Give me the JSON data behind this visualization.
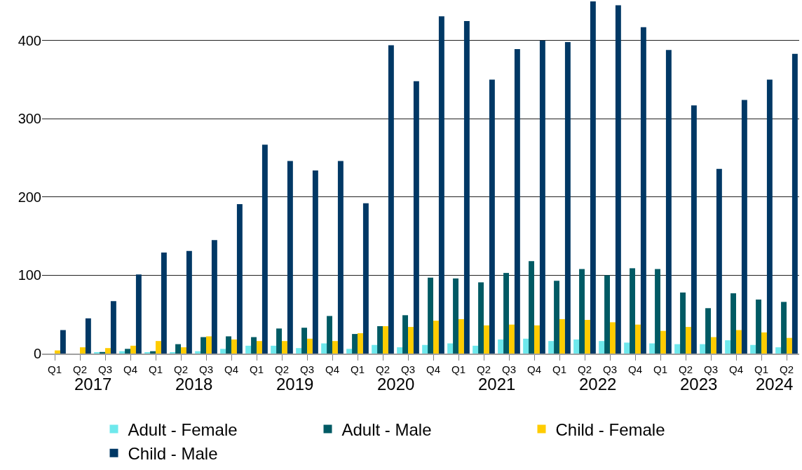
{
  "chart_data": {
    "type": "bar",
    "categories": [
      "Q1",
      "Q2",
      "Q3",
      "Q4",
      "Q1",
      "Q2",
      "Q3",
      "Q4",
      "Q1",
      "Q2",
      "Q3",
      "Q4",
      "Q1",
      "Q2",
      "Q3",
      "Q4",
      "Q1",
      "Q2",
      "Q3",
      "Q4",
      "Q1",
      "Q2",
      "Q3",
      "Q4",
      "Q1",
      "Q2",
      "Q3",
      "Q4",
      "Q1",
      "Q2"
    ],
    "annotations": [
      "2017",
      "2018",
      "2019",
      "2020",
      "2021",
      "2022",
      "2023",
      "2024"
    ],
    "series": [
      {
        "name": "Adult - Female",
        "color": "#6ee8ec",
        "values": [
          0,
          0,
          1,
          3,
          1,
          1,
          3,
          6,
          10,
          10,
          7,
          13,
          6,
          11,
          8,
          11,
          13,
          10,
          18,
          19,
          16,
          18,
          16,
          14,
          13,
          12,
          12,
          17,
          11,
          8
        ]
      },
      {
        "name": "Adult - Male",
        "color": "#005a64",
        "values": [
          0,
          0,
          2,
          6,
          3,
          12,
          21,
          22,
          21,
          32,
          33,
          48,
          25,
          35,
          49,
          97,
          96,
          91,
          103,
          118,
          93,
          108,
          100,
          109,
          108,
          78,
          58,
          77,
          69,
          66
        ]
      },
      {
        "name": "Child - Female",
        "color": "#ffcc00",
        "values": [
          4,
          8,
          7,
          10,
          16,
          8,
          22,
          18,
          16,
          16,
          19,
          16,
          26,
          35,
          34,
          42,
          44,
          36,
          37,
          36,
          44,
          43,
          40,
          37,
          29,
          34,
          21,
          30,
          27,
          20
        ]
      },
      {
        "name": "Child - Male",
        "color": "#003865",
        "values": [
          30,
          45,
          67,
          101,
          129,
          131,
          145,
          191,
          267,
          246,
          234,
          246,
          192,
          394,
          348,
          431,
          425,
          350,
          389,
          400,
          398,
          450,
          445,
          417,
          388,
          317,
          236,
          324,
          350,
          383
        ]
      }
    ],
    "ylim": [
      0,
      450
    ],
    "yticks": [
      0,
      100,
      200,
      300,
      400
    ],
    "grid": "y",
    "legend": "bottom"
  }
}
